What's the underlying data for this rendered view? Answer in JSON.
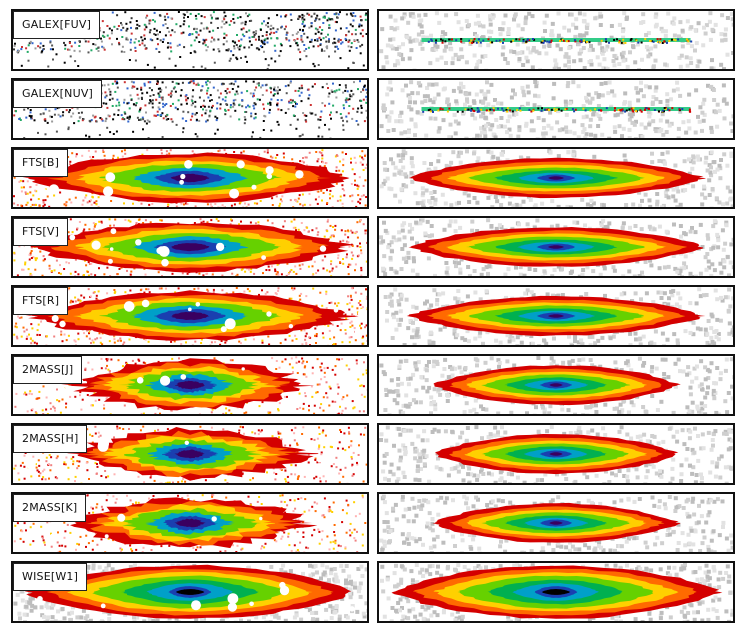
{
  "panels": [
    {
      "label": "GALEX[FUV]",
      "kind": "sparse"
    },
    {
      "label": "GALEX[NUV]",
      "kind": "sparse"
    },
    {
      "label": "FTS[B]",
      "kind": "broad"
    },
    {
      "label": "FTS[V]",
      "kind": "broad"
    },
    {
      "label": "FTS[R]",
      "kind": "broad"
    },
    {
      "label": "2MASS[J]",
      "kind": "noisy"
    },
    {
      "label": "2MASS[H]",
      "kind": "noisy"
    },
    {
      "label": "2MASS[K]",
      "kind": "noisy"
    },
    {
      "label": "WISE[W1]",
      "kind": "wide"
    }
  ],
  "colors": {
    "contours": [
      "#c8c8c8",
      "#d40000",
      "#ff6a00",
      "#ffd000",
      "#66d100",
      "#00b050",
      "#00a0c8",
      "#1a3fb0",
      "#3a0060",
      "#000000"
    ]
  }
}
